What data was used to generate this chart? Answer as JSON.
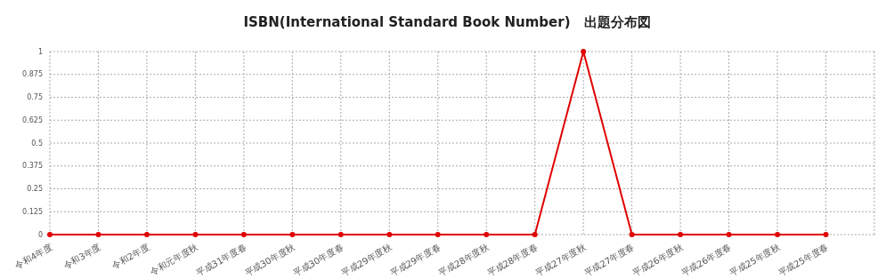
{
  "chart_data": {
    "type": "line",
    "title": "ISBN(International Standard Book Number)　出題分布図",
    "categories": [
      "令和4年度",
      "令和3年度",
      "令和2年度",
      "令和元年度秋",
      "平成31年度春",
      "平成30年度秋",
      "平成30年度春",
      "平成29年度秋",
      "平成29年度春",
      "平成28年度秋",
      "平成28年度春",
      "平成27年度秋",
      "平成27年度春",
      "平成26年度秋",
      "平成26年度春",
      "平成25年度秋",
      "平成25年度春"
    ],
    "series": [
      {
        "color": "#e00000",
        "values": [
          0,
          0,
          0,
          0,
          0,
          0,
          0,
          0,
          0,
          0,
          0,
          1,
          0,
          0,
          0,
          0,
          0
        ]
      }
    ],
    "ylim": [
      0,
      1
    ],
    "yticks": [
      0,
      0.125,
      0.25,
      0.375,
      0.5,
      0.625,
      0.75,
      0.875,
      1
    ],
    "grid": true,
    "marker": "circle",
    "line_style": "solid"
  }
}
